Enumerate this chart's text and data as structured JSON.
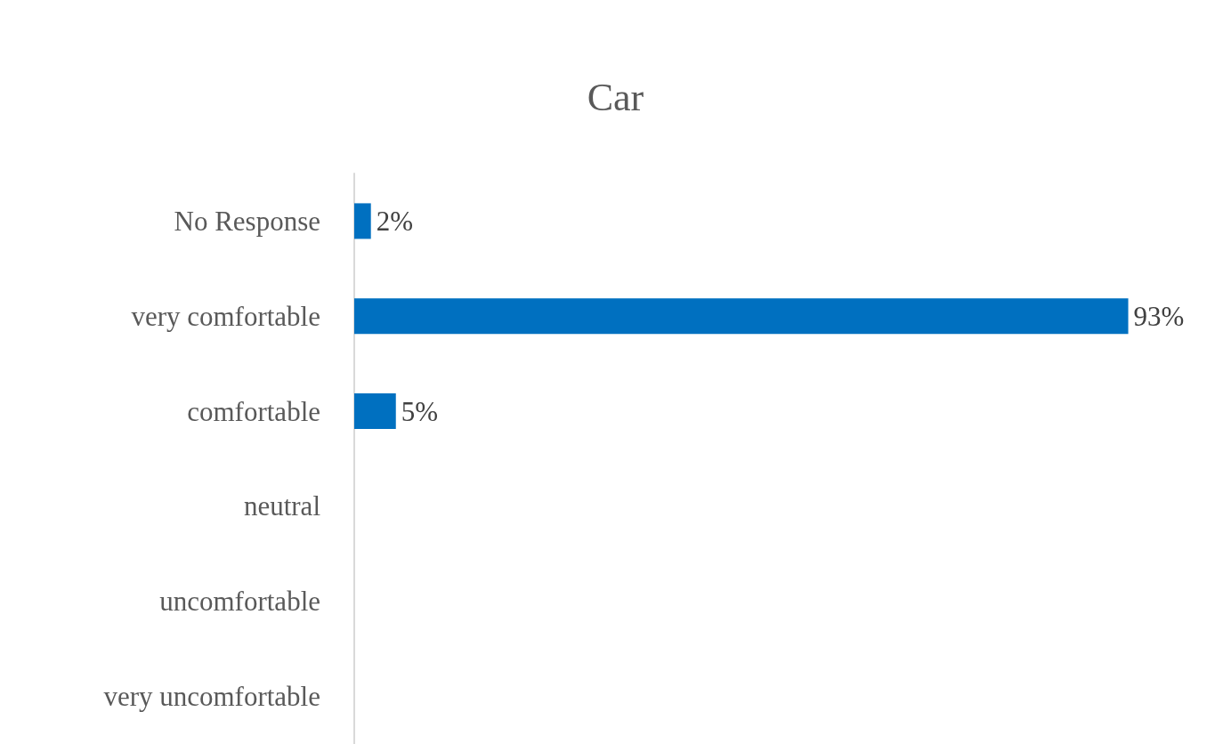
{
  "chart_data": {
    "type": "bar",
    "orientation": "horizontal",
    "title": "Car",
    "categories": [
      "No Response",
      "very comfortable",
      "comfortable",
      "neutral",
      "uncomfortable",
      "very uncomfortable"
    ],
    "values": [
      2,
      93,
      5,
      0,
      0,
      0
    ],
    "value_labels": [
      "2%",
      "93%",
      "5%",
      null,
      null,
      null
    ],
    "color": "#0070c0",
    "grid": false
  }
}
